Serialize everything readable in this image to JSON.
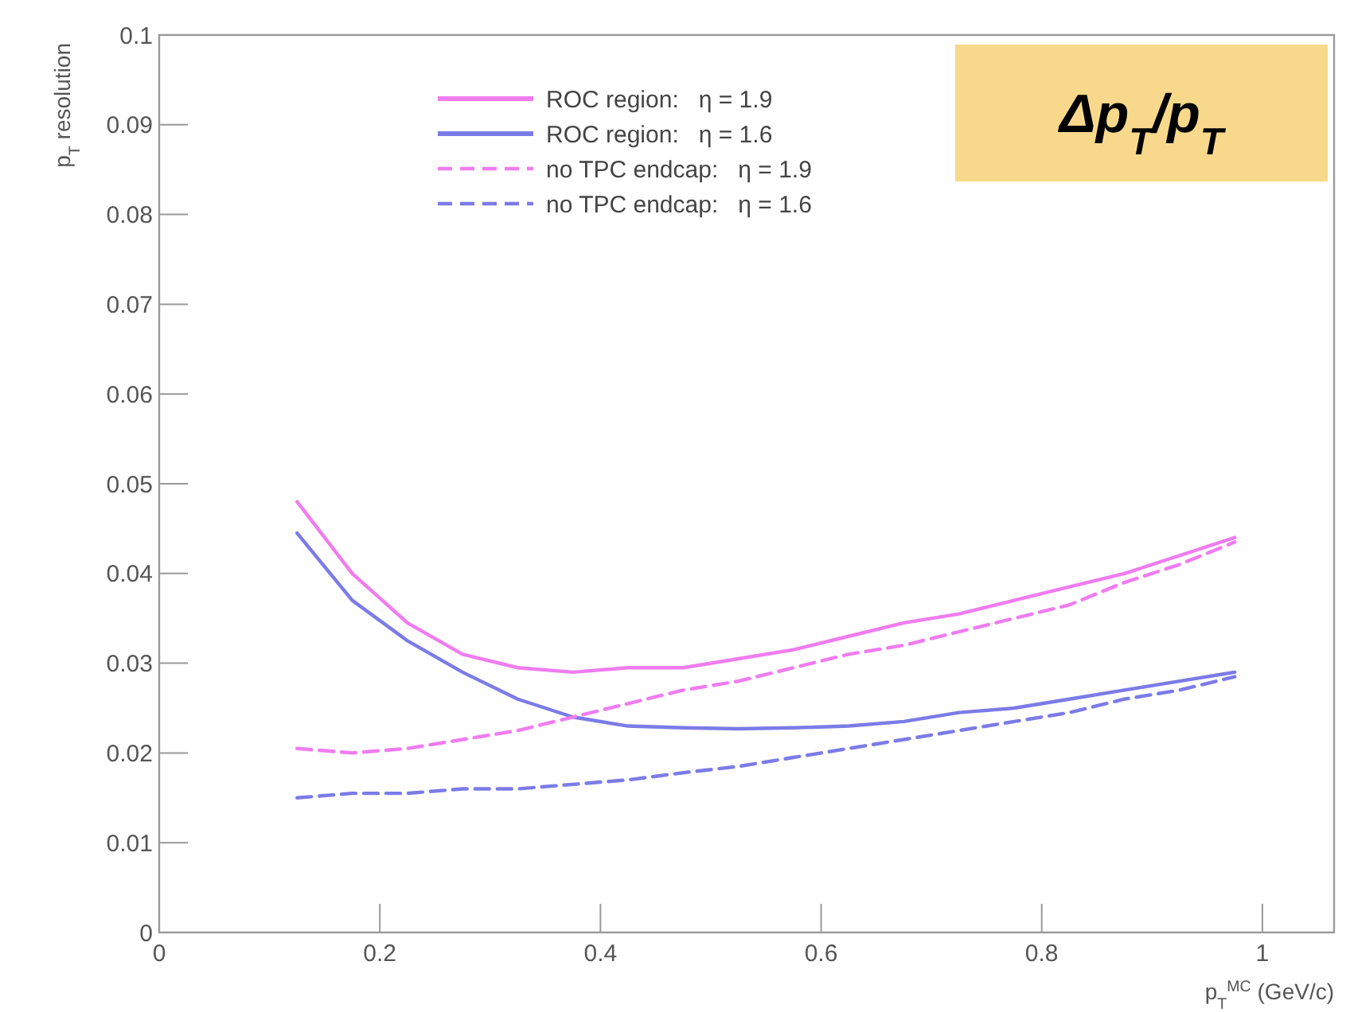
{
  "chart_data": {
    "type": "line",
    "xlabel": "p$_{T}$$^{MC}$ (GeV/c)",
    "ylabel": "p$_{T}$ resolution",
    "annotations": [
      "Δp$_{T}$/p$_{T}$"
    ],
    "x": [
      0.125,
      0.175,
      0.225,
      0.275,
      0.325,
      0.375,
      0.425,
      0.475,
      0.525,
      0.575,
      0.625,
      0.675,
      0.725,
      0.775,
      0.825,
      0.875,
      0.925,
      0.975
    ],
    "series": [
      {
        "name": "ROC region:   η = 1.9",
        "color": "#f07cf0",
        "line_style": "solid",
        "values": [
          0.048,
          0.04,
          0.0345,
          0.031,
          0.0295,
          0.029,
          0.0295,
          0.0295,
          0.0305,
          0.0315,
          0.033,
          0.0345,
          0.0355,
          0.037,
          0.0385,
          0.04,
          0.042,
          0.044
        ]
      },
      {
        "name": "ROC region:   η = 1.6",
        "color": "#7b7be8",
        "line_style": "solid",
        "values": [
          0.0445,
          0.037,
          0.0325,
          0.029,
          0.026,
          0.024,
          0.023,
          0.0228,
          0.0227,
          0.0228,
          0.023,
          0.0235,
          0.0245,
          0.025,
          0.026,
          0.027,
          0.028,
          0.029
        ]
      },
      {
        "name": "no TPC endcap:   η = 1.9",
        "color": "#f07cf0",
        "line_style": "dashed",
        "values": [
          0.0205,
          0.02,
          0.0205,
          0.0215,
          0.0225,
          0.024,
          0.0255,
          0.027,
          0.028,
          0.0295,
          0.031,
          0.032,
          0.0335,
          0.035,
          0.0365,
          0.039,
          0.041,
          0.0435
        ]
      },
      {
        "name": "no TPC endcap:   η = 1.6",
        "color": "#7b7be8",
        "line_style": "dashed",
        "values": [
          0.015,
          0.0155,
          0.0155,
          0.016,
          0.016,
          0.0165,
          0.017,
          0.0178,
          0.0185,
          0.0195,
          0.0205,
          0.0215,
          0.0225,
          0.0235,
          0.0245,
          0.026,
          0.027,
          0.0285
        ]
      }
    ],
    "xlim": [
      0,
      1.065
    ],
    "ylim": [
      0,
      0.1
    ],
    "xticks": [
      0,
      0.2,
      0.4,
      0.6,
      0.8,
      1
    ],
    "yticks": [
      0,
      0.01,
      0.02,
      0.03,
      0.04,
      0.05,
      0.06,
      0.07,
      0.08,
      0.09,
      0.1
    ],
    "grid": false,
    "legend": "top",
    "marker": "none"
  }
}
